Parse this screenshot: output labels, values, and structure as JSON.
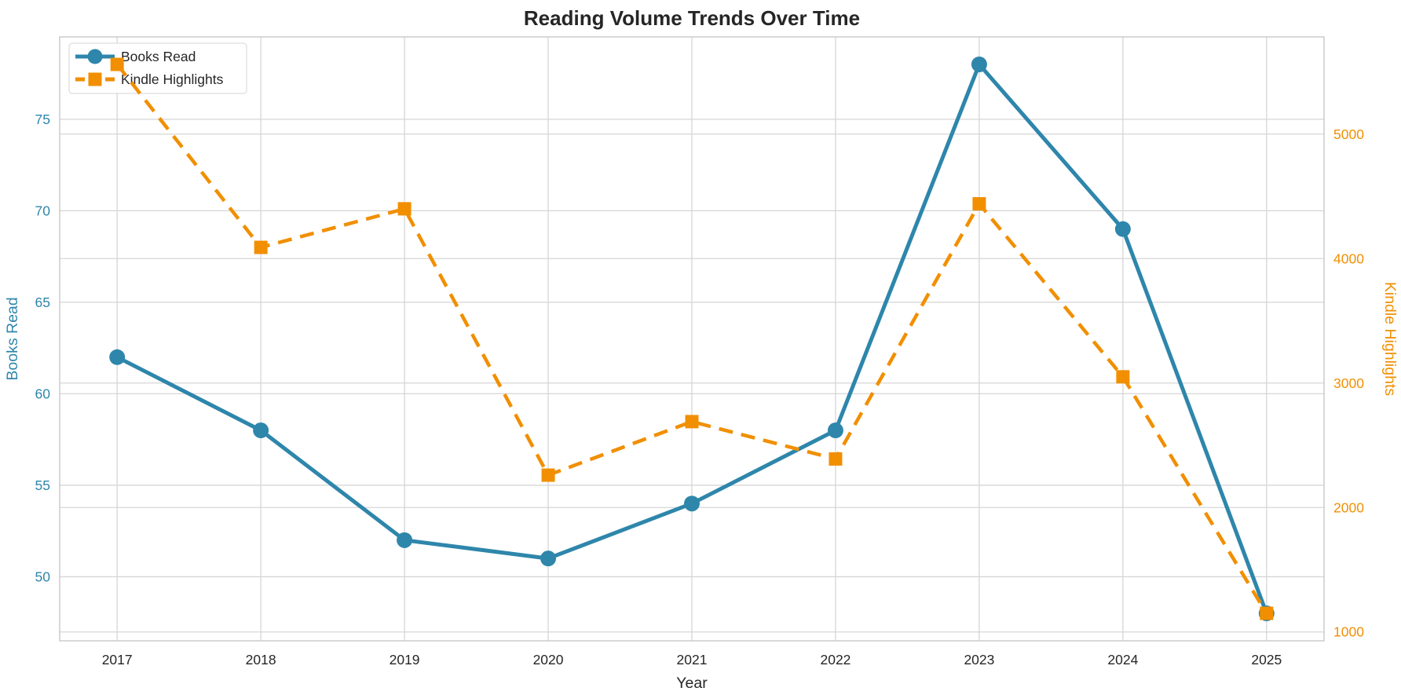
{
  "chart_data": {
    "type": "line",
    "title": "Reading Volume Trends Over Time",
    "xlabel": "Year",
    "ylabel_left": "Books Read",
    "ylabel_right": "Kindle Highlights",
    "categories": [
      2017,
      2018,
      2019,
      2020,
      2021,
      2022,
      2023,
      2024,
      2025
    ],
    "series": [
      {
        "name": "Books Read",
        "axis": "left",
        "color": "#2E86AB",
        "line_style": "solid",
        "marker": "circle",
        "values": [
          62,
          58,
          52,
          51,
          54,
          58,
          78,
          69,
          48
        ]
      },
      {
        "name": "Kindle Highlights",
        "axis": "right",
        "color": "#F18F01",
        "line_style": "dashed",
        "marker": "square",
        "values": [
          5560,
          4090,
          4400,
          2260,
          2690,
          2390,
          4440,
          3050,
          1150
        ]
      }
    ],
    "left_axis": {
      "ticks": [
        50,
        55,
        60,
        65,
        70,
        75
      ],
      "range": [
        46.5,
        79.5
      ],
      "color": "#2E86AB"
    },
    "right_axis": {
      "ticks": [
        1000,
        2000,
        3000,
        4000,
        5000
      ],
      "range": [
        929,
        5781
      ],
      "color": "#F18F01"
    },
    "x_axis": {
      "range": [
        2016.6,
        2025.4
      ],
      "tick_color": "#262626"
    },
    "legend": {
      "position": "upper-left",
      "entries": [
        "Books Read",
        "Kindle Highlights"
      ]
    },
    "grid": true,
    "colors": {
      "background": "#ffffff",
      "gridline": "#d6d6d6",
      "spine": "#cccccc",
      "text_dark": "#262626"
    }
  }
}
